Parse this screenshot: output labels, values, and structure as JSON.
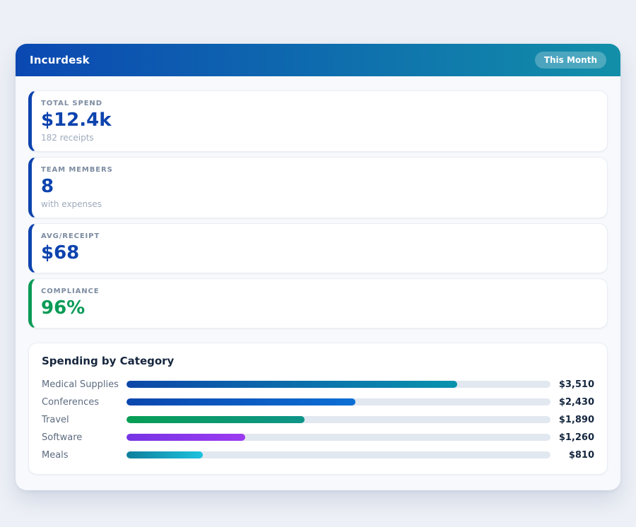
{
  "theme": {
    "page_bg": "#edf0f6",
    "panel_bg": "#f7f9fc",
    "header_gradient_start": "#0b48b2",
    "header_gradient_end": "#128fa9",
    "accent_blue": "#0d43ae",
    "accent_green": "#0a9b57",
    "bar_track": "#e2e8f0"
  },
  "header": {
    "title": "Incurdesk",
    "badge_label": "This Month"
  },
  "stats": [
    {
      "label": "TOTAL SPEND",
      "value": "$12.4k",
      "sub": "182 receipts",
      "accent": "#0d43ae",
      "value_color": "#0d43ae"
    },
    {
      "label": "TEAM MEMBERS",
      "value": "8",
      "sub": "with expenses",
      "accent": "#0d43ae",
      "value_color": "#0d43ae"
    },
    {
      "label": "AVG/RECEIPT",
      "value": "$68",
      "accent": "#0d43ae",
      "value_color": "#0d43ae"
    },
    {
      "label": "COMPLIANCE",
      "value": "96%",
      "accent": "#0a9b57",
      "value_color": "#0a9b57"
    }
  ],
  "chart_data": {
    "type": "bar",
    "orientation": "horizontal",
    "title": "Spending by Category",
    "categories": [
      "Medical Supplies",
      "Conferences",
      "Travel",
      "Software",
      "Meals"
    ],
    "values": [
      3510,
      2430,
      1890,
      1260,
      810
    ],
    "value_labels": [
      "$3,510",
      "$2,430",
      "$1,890",
      "$1,260",
      "$810"
    ],
    "axis_max": 4500,
    "grid": false,
    "legend": false,
    "rows": [
      {
        "label": "Medical Supplies",
        "value": 3510,
        "value_label": "$3,510",
        "percent": 78,
        "color_start": "#0d47a8",
        "color_end": "#0a93ad"
      },
      {
        "label": "Conferences",
        "value": 2430,
        "value_label": "$2,430",
        "percent": 54,
        "color_start": "#0a46ae",
        "color_end": "#0d6fd4"
      },
      {
        "label": "Travel",
        "value": 1890,
        "value_label": "$1,890",
        "percent": 42,
        "color_start": "#089e55",
        "color_end": "#0e9488"
      },
      {
        "label": "Software",
        "value": 1260,
        "value_label": "$1,260",
        "percent": 28,
        "color_start": "#7634e4",
        "color_end": "#9c3bf0"
      },
      {
        "label": "Meals",
        "value": 810,
        "value_label": "$810",
        "percent": 18,
        "color_start": "#0f7f9b",
        "color_end": "#1cc2de"
      }
    ]
  }
}
